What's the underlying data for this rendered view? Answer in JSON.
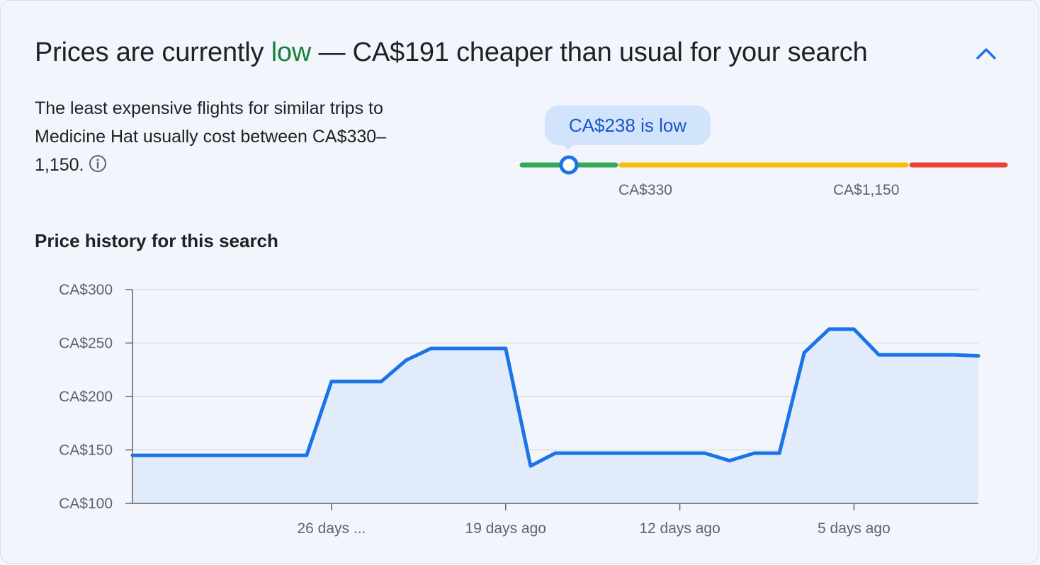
{
  "header": {
    "prefix": "Prices are currently ",
    "status": "low",
    "suffix": " — CA$191 cheaper than usual for your search",
    "collapse_icon": "chevron-up-icon"
  },
  "summary": {
    "text": "The least expensive flights for similar trips to Medicine Hat usually cost between CA$330–1,150.",
    "info_icon": "info-icon"
  },
  "price_gauge": {
    "current_label": "CA$238 is low",
    "current_price": 238,
    "low_threshold_label": "CA$330",
    "high_threshold_label": "CA$1,150",
    "low_threshold": 330,
    "high_threshold": 1150,
    "colors": {
      "low": "#34a853",
      "typical": "#fbbc04",
      "high": "#ea4335"
    }
  },
  "chart_data": {
    "type": "area",
    "title": "Price history for this search",
    "ylim": [
      100,
      300
    ],
    "yticks": [
      300,
      250,
      200,
      150,
      100
    ],
    "ytick_labels": [
      "CA$300",
      "CA$250",
      "CA$200",
      "CA$150",
      "CA$100"
    ],
    "xlim": [
      -34,
      0
    ],
    "xticks": [
      -26,
      -19,
      -12,
      -5
    ],
    "xtick_labels": [
      "26 days ...",
      "19 days ago",
      "12 days ago",
      "5 days ago"
    ],
    "series": [
      {
        "x": [
          -34,
          -27,
          -26,
          -25,
          -24,
          -23,
          -22,
          -21,
          -20,
          -19,
          -18,
          -17,
          -16,
          -15,
          -14,
          -13,
          -12,
          -11,
          -10,
          -9,
          -8,
          -7,
          -6,
          -5,
          -4,
          -3,
          -2,
          -1,
          0
        ],
        "y": [
          145,
          145,
          214,
          214,
          214,
          234,
          245,
          245,
          245,
          245,
          135,
          147,
          147,
          147,
          147,
          147,
          147,
          147,
          140,
          147,
          147,
          241,
          263,
          263,
          239,
          239,
          239,
          239,
          238
        ],
        "color": "#1a73e8",
        "fill": "#e1ebfa"
      }
    ],
    "grid": true
  }
}
